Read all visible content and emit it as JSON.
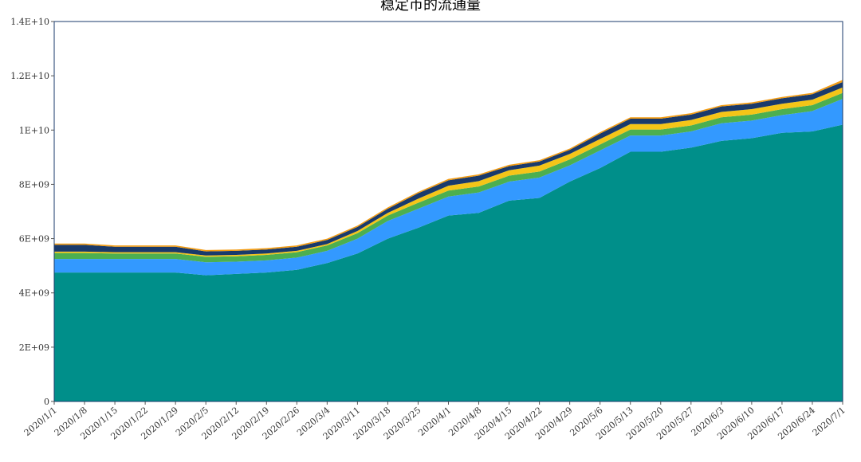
{
  "chart_data": {
    "type": "area",
    "stacked": true,
    "title": "稳定币的流通量",
    "xlabel": "",
    "ylabel": "",
    "ylim": [
      0,
      14000000000
    ],
    "yticks": [
      {
        "value": 0,
        "label": "0"
      },
      {
        "value": 2000000000,
        "label": "2E+09"
      },
      {
        "value": 4000000000,
        "label": "4E+09"
      },
      {
        "value": 6000000000,
        "label": "6E+09"
      },
      {
        "value": 8000000000,
        "label": "8E+09"
      },
      {
        "value": 10000000000,
        "label": "1E+10"
      },
      {
        "value": 12000000000,
        "label": "1.2E+10"
      },
      {
        "value": 14000000000,
        "label": "1.4E+10"
      }
    ],
    "x": [
      "2020/1/1",
      "2020/1/8",
      "2020/1/15",
      "2020/1/22",
      "2020/1/29",
      "2020/2/5",
      "2020/2/12",
      "2020/2/19",
      "2020/2/26",
      "2020/3/4",
      "2020/3/11",
      "2020/3/18",
      "2020/3/25",
      "2020/4/1",
      "2020/4/8",
      "2020/4/15",
      "2020/4/22",
      "2020/4/29",
      "2020/5/6",
      "2020/5/13",
      "2020/5/20",
      "2020/5/27",
      "2020/6/3",
      "2020/6/10",
      "2020/6/17",
      "2020/6/24",
      "2020/7/1"
    ],
    "colors": [
      "#008f8a",
      "#3399ff",
      "#4caf50",
      "#f5c518",
      "#1a3a6b",
      "#f39c12"
    ],
    "series": [
      {
        "values": [
          4750000000.0,
          4750000000.0,
          4750000000.0,
          4750000000.0,
          4750000000.0,
          4650000000.0,
          4700000000.0,
          4750000000.0,
          4850000000.0,
          5100000000.0,
          5450000000.0,
          6000000000.0,
          6400000000.0,
          6850000000.0,
          6950000000.0,
          7400000000.0,
          7500000000.0,
          8100000000.0,
          8600000000.0,
          9200000000.0,
          9200000000.0,
          9350000000.0,
          9600000000.0,
          9700000000.0,
          9900000000.0,
          9950000000.0,
          10200000000.0
        ]
      },
      {
        "values": [
          500000000.0,
          500000000.0,
          500000000.0,
          500000000.0,
          500000000.0,
          480000000.0,
          450000000.0,
          450000000.0,
          450000000.0,
          450000000.0,
          550000000.0,
          650000000.0,
          700000000.0,
          700000000.0,
          750000000.0,
          700000000.0,
          750000000.0,
          600000000.0,
          650000000.0,
          600000000.0,
          600000000.0,
          600000000.0,
          650000000.0,
          650000000.0,
          650000000.0,
          750000000.0,
          950000000.0
        ]
      },
      {
        "values": [
          220000000.0,
          220000000.0,
          200000000.0,
          200000000.0,
          200000000.0,
          200000000.0,
          200000000.0,
          200000000.0,
          200000000.0,
          200000000.0,
          200000000.0,
          200000000.0,
          220000000.0,
          220000000.0,
          220000000.0,
          220000000.0,
          220000000.0,
          220000000.0,
          220000000.0,
          220000000.0,
          220000000.0,
          220000000.0,
          220000000.0,
          220000000.0,
          220000000.0,
          220000000.0,
          220000000.0
        ]
      },
      {
        "values": [
          50000000.0,
          50000000.0,
          50000000.0,
          50000000.0,
          50000000.0,
          50000000.0,
          50000000.0,
          50000000.0,
          50000000.0,
          50000000.0,
          80000000.0,
          100000000.0,
          150000000.0,
          180000000.0,
          200000000.0,
          200000000.0,
          220000000.0,
          200000000.0,
          200000000.0,
          200000000.0,
          200000000.0,
          200000000.0,
          200000000.0,
          200000000.0,
          200000000.0,
          200000000.0,
          200000000.0
        ]
      },
      {
        "values": [
          250000000.0,
          250000000.0,
          200000000.0,
          200000000.0,
          200000000.0,
          150000000.0,
          150000000.0,
          150000000.0,
          150000000.0,
          150000000.0,
          150000000.0,
          150000000.0,
          200000000.0,
          200000000.0,
          200000000.0,
          150000000.0,
          150000000.0,
          150000000.0,
          200000000.0,
          200000000.0,
          200000000.0,
          200000000.0,
          200000000.0,
          200000000.0,
          200000000.0,
          200000000.0,
          200000000.0
        ]
      },
      {
        "values": [
          50000000.0,
          50000000.0,
          50000000.0,
          50000000.0,
          50000000.0,
          50000000.0,
          50000000.0,
          50000000.0,
          50000000.0,
          50000000.0,
          50000000.0,
          50000000.0,
          50000000.0,
          50000000.0,
          50000000.0,
          50000000.0,
          50000000.0,
          50000000.0,
          50000000.0,
          50000000.0,
          50000000.0,
          50000000.0,
          50000000.0,
          50000000.0,
          50000000.0,
          50000000.0,
          80000000.0
        ]
      }
    ],
    "grid": false,
    "legend": "none"
  }
}
